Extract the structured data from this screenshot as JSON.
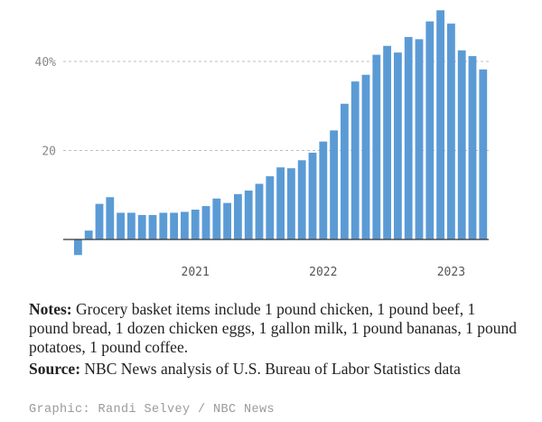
{
  "chart_data": {
    "type": "bar",
    "title": "",
    "xlabel": "",
    "ylabel": "",
    "ylim": [
      -4,
      52
    ],
    "y_ticks": [
      {
        "value": 20,
        "label": "20"
      },
      {
        "value": 40,
        "label": "40%"
      }
    ],
    "x_tick_labels": [
      {
        "label": "2021",
        "bar_index": 11
      },
      {
        "label": "2022",
        "bar_index": 23
      },
      {
        "label": "2023",
        "bar_index": 35
      }
    ],
    "bar_color": "#5b9bd5",
    "grid": "dotted horizontal",
    "values": [
      -3.5,
      2,
      8,
      9.5,
      6,
      6,
      5.5,
      5.5,
      6,
      6,
      6.2,
      6.7,
      7.5,
      9.2,
      8.2,
      10.2,
      11,
      12.5,
      14.2,
      16.2,
      16,
      17.8,
      19.5,
      22,
      24.5,
      30.5,
      35.5,
      37,
      41.5,
      43.5,
      42,
      45.5,
      45,
      49,
      51.5,
      48.5,
      42.5,
      41.2,
      38.2
    ]
  },
  "notes": {
    "label": "Notes:",
    "text": " Grocery basket items include 1 pound chicken, 1 pound beef, 1 pound bread, 1 dozen chicken eggs, 1 gallon milk, 1 pound bananas, 1 pound potatoes, 1 pound coffee."
  },
  "source": {
    "label": "Source:",
    "text": " NBC News analysis of U.S. Bureau of Labor Statistics data"
  },
  "credit": "Graphic: Randi Selvey / NBC News"
}
